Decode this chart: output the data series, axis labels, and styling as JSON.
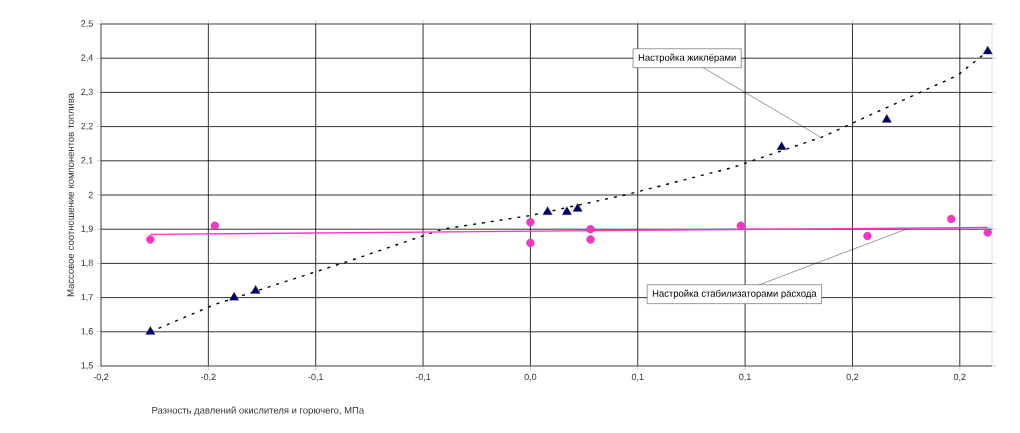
{
  "chart_data": {
    "type": "scatter",
    "xlabel": "Разность давлений окислителя и горючего, МПа",
    "ylabel": "Массовое соотношение компонентов топлива",
    "xlim": [
      -0.2,
      0.215
    ],
    "ylim": [
      1.5,
      2.5
    ],
    "xticks": [
      {
        "value": -0.2,
        "label": "-0,2"
      },
      {
        "value": -0.15,
        "label": "-0,2"
      },
      {
        "value": -0.1,
        "label": "-0,1"
      },
      {
        "value": -0.05,
        "label": "-0,1"
      },
      {
        "value": 0,
        "label": "0,0"
      },
      {
        "value": 0.05,
        "label": "0,1"
      },
      {
        "value": 0.1,
        "label": "0,1"
      },
      {
        "value": 0.15,
        "label": "0,2"
      },
      {
        "value": 0.2,
        "label": "0,2"
      }
    ],
    "yticks": [
      {
        "value": 1.5,
        "label": "1,5"
      },
      {
        "value": 1.6,
        "label": "1,6"
      },
      {
        "value": 1.7,
        "label": "1,7"
      },
      {
        "value": 1.8,
        "label": "1,8"
      },
      {
        "value": 1.9,
        "label": "1,9"
      },
      {
        "value": 2,
        "label": "2"
      },
      {
        "value": 2.1,
        "label": "2,1"
      },
      {
        "value": 2.2,
        "label": "2,2"
      },
      {
        "value": 2.3,
        "label": "2,3"
      },
      {
        "value": 2.4,
        "label": "2,4"
      },
      {
        "value": 2.5,
        "label": "2,5"
      }
    ],
    "grid": true,
    "series": [
      {
        "type": "line",
        "color": "#000000",
        "line_style": "dashed",
        "marker": "none",
        "x": [
          -0.177,
          -0.147,
          -0.083,
          -0.041,
          0,
          0.044,
          0.094,
          0.136,
          0.199,
          0.213
        ],
        "values": [
          1.6,
          1.68,
          1.81,
          1.9,
          1.94,
          2.0,
          2.08,
          2.17,
          2.35,
          2.42
        ]
      },
      {
        "type": "line",
        "color": "#ff33cc",
        "line_style": "solid",
        "marker": "none",
        "x": [
          -0.177,
          0.213
        ],
        "values": [
          1.885,
          1.905
        ]
      },
      {
        "color": "#000066",
        "marker": "triangle",
        "x": [
          -0.177,
          -0.138,
          -0.128,
          0.008,
          0.017,
          0.022,
          0.117,
          0.166,
          0.213
        ],
        "values": [
          1.6,
          1.7,
          1.72,
          1.95,
          1.95,
          1.96,
          2.14,
          2.22,
          2.42
        ]
      },
      {
        "color": "#ff33cc",
        "marker": "circle",
        "x": [
          -0.177,
          -0.147,
          0,
          0,
          0.028,
          0.028,
          0.098,
          0.157,
          0.196,
          0.213
        ],
        "values": [
          1.87,
          1.91,
          1.92,
          1.86,
          1.9,
          1.87,
          1.91,
          1.88,
          1.93,
          1.89
        ]
      }
    ],
    "annotations": [
      {
        "text": "Настройка жиклёрами",
        "x": 0.135,
        "y": 2.17
      },
      {
        "text": "Настройка стабилизаторами расхода",
        "x": 0.175,
        "y": 1.9
      }
    ]
  }
}
